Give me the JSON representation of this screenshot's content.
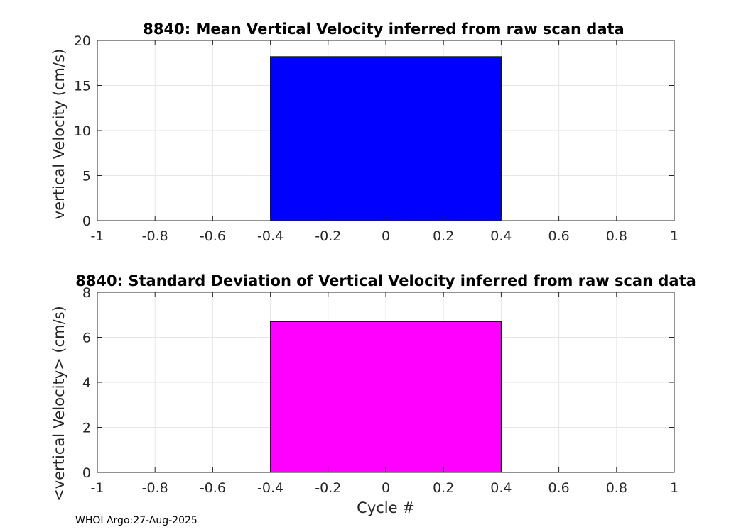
{
  "chart_data": [
    {
      "type": "bar",
      "title": "8840: Mean Vertical Velocity inferred from raw scan data",
      "xlabel": "",
      "ylabel": "vertical Velocity (cm/s)",
      "categories": [
        0
      ],
      "values": [
        18.2
      ],
      "bar_width": 0.8,
      "bar_color": "#0000ff",
      "xlim": [
        -1,
        1
      ],
      "ylim": [
        0,
        20
      ],
      "xticks": [
        -1,
        -0.8,
        -0.6,
        -0.4,
        -0.2,
        0,
        0.2,
        0.4,
        0.6,
        0.8,
        1
      ],
      "xticklabels": [
        "-1",
        "-0.8",
        "-0.6",
        "-0.4",
        "-0.2",
        "0",
        "0.2",
        "0.4",
        "0.6",
        "0.8",
        "1"
      ],
      "yticks": [
        0,
        5,
        10,
        15,
        20
      ],
      "yticklabels": [
        "0",
        "5",
        "10",
        "15",
        "20"
      ],
      "grid": true
    },
    {
      "type": "bar",
      "title": "8840: Standard Deviation of Vertical Velocity inferred from raw scan data",
      "xlabel": "Cycle #",
      "ylabel": "<vertical Velocity> (cm/s)",
      "categories": [
        0
      ],
      "values": [
        6.7
      ],
      "bar_width": 0.8,
      "bar_color": "#ff00ff",
      "xlim": [
        -1,
        1
      ],
      "ylim": [
        0,
        8
      ],
      "xticks": [
        -1,
        -0.8,
        -0.6,
        -0.4,
        -0.2,
        0,
        0.2,
        0.4,
        0.6,
        0.8,
        1
      ],
      "xticklabels": [
        "-1",
        "-0.8",
        "-0.6",
        "-0.4",
        "-0.2",
        "0",
        "0.2",
        "0.4",
        "0.6",
        "0.8",
        "1"
      ],
      "yticks": [
        0,
        2,
        4,
        6,
        8
      ],
      "yticklabels": [
        "0",
        "2",
        "4",
        "6",
        "8"
      ],
      "grid": true
    }
  ],
  "footer": {
    "text": "WHOI Argo:27-Aug-2025"
  }
}
